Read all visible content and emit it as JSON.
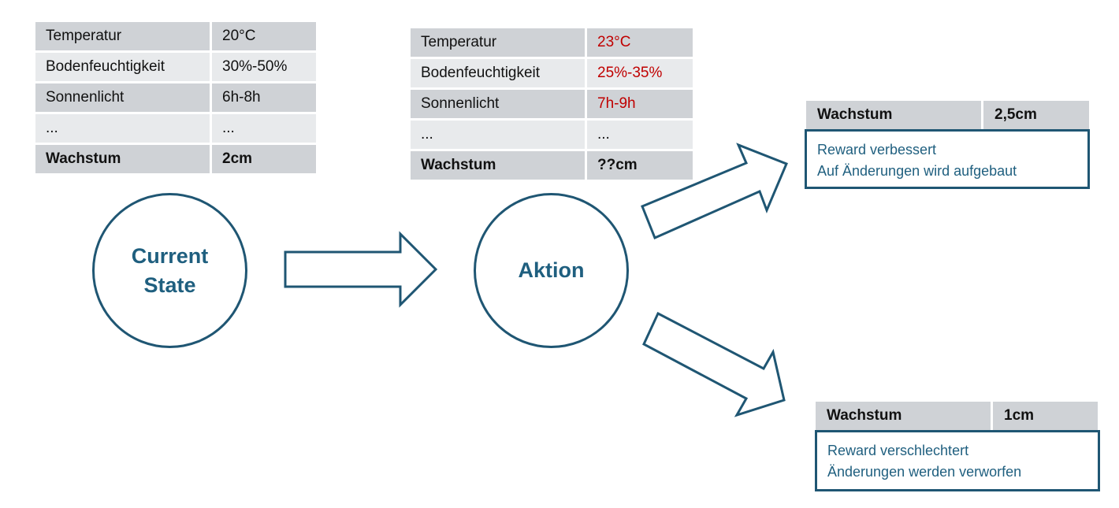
{
  "current_table": {
    "rows": [
      {
        "label": "Temperatur",
        "value": "20°C"
      },
      {
        "label": "Bodenfeuchtigkeit",
        "value": "30%-50%"
      },
      {
        "label": "Sonnenlicht",
        "value": "6h-8h"
      },
      {
        "label": "...",
        "value": "..."
      }
    ],
    "total": {
      "label": "Wachstum",
      "value": "2cm"
    }
  },
  "action_table": {
    "rows": [
      {
        "label": "Temperatur",
        "value": "23°C"
      },
      {
        "label": "Bodenfeuchtigkeit",
        "value": "25%-35%"
      },
      {
        "label": "Sonnenlicht",
        "value": "7h-9h"
      },
      {
        "label": "...",
        "value": "..."
      }
    ],
    "total": {
      "label": "Wachstum",
      "value": "??cm"
    },
    "changed_color": "#c00000"
  },
  "nodes": {
    "current_state": {
      "line1": "Current",
      "line2": "State"
    },
    "action": {
      "label": "Aktion"
    }
  },
  "outcomes": {
    "better": {
      "header": {
        "label": "Wachstum",
        "value": "2,5cm"
      },
      "lines": [
        "Reward verbessert",
        "Auf Änderungen wird aufgebaut"
      ]
    },
    "worse": {
      "header": {
        "label": "Wachstum",
        "value": "1cm"
      },
      "lines": [
        "Reward verschlechtert",
        "Änderungen werden verworfen"
      ]
    }
  },
  "colors": {
    "accent": "#1f5673",
    "accent_text": "#1f5f7f",
    "row_dark": "#cfd2d6",
    "row_light": "#e8eaec"
  }
}
